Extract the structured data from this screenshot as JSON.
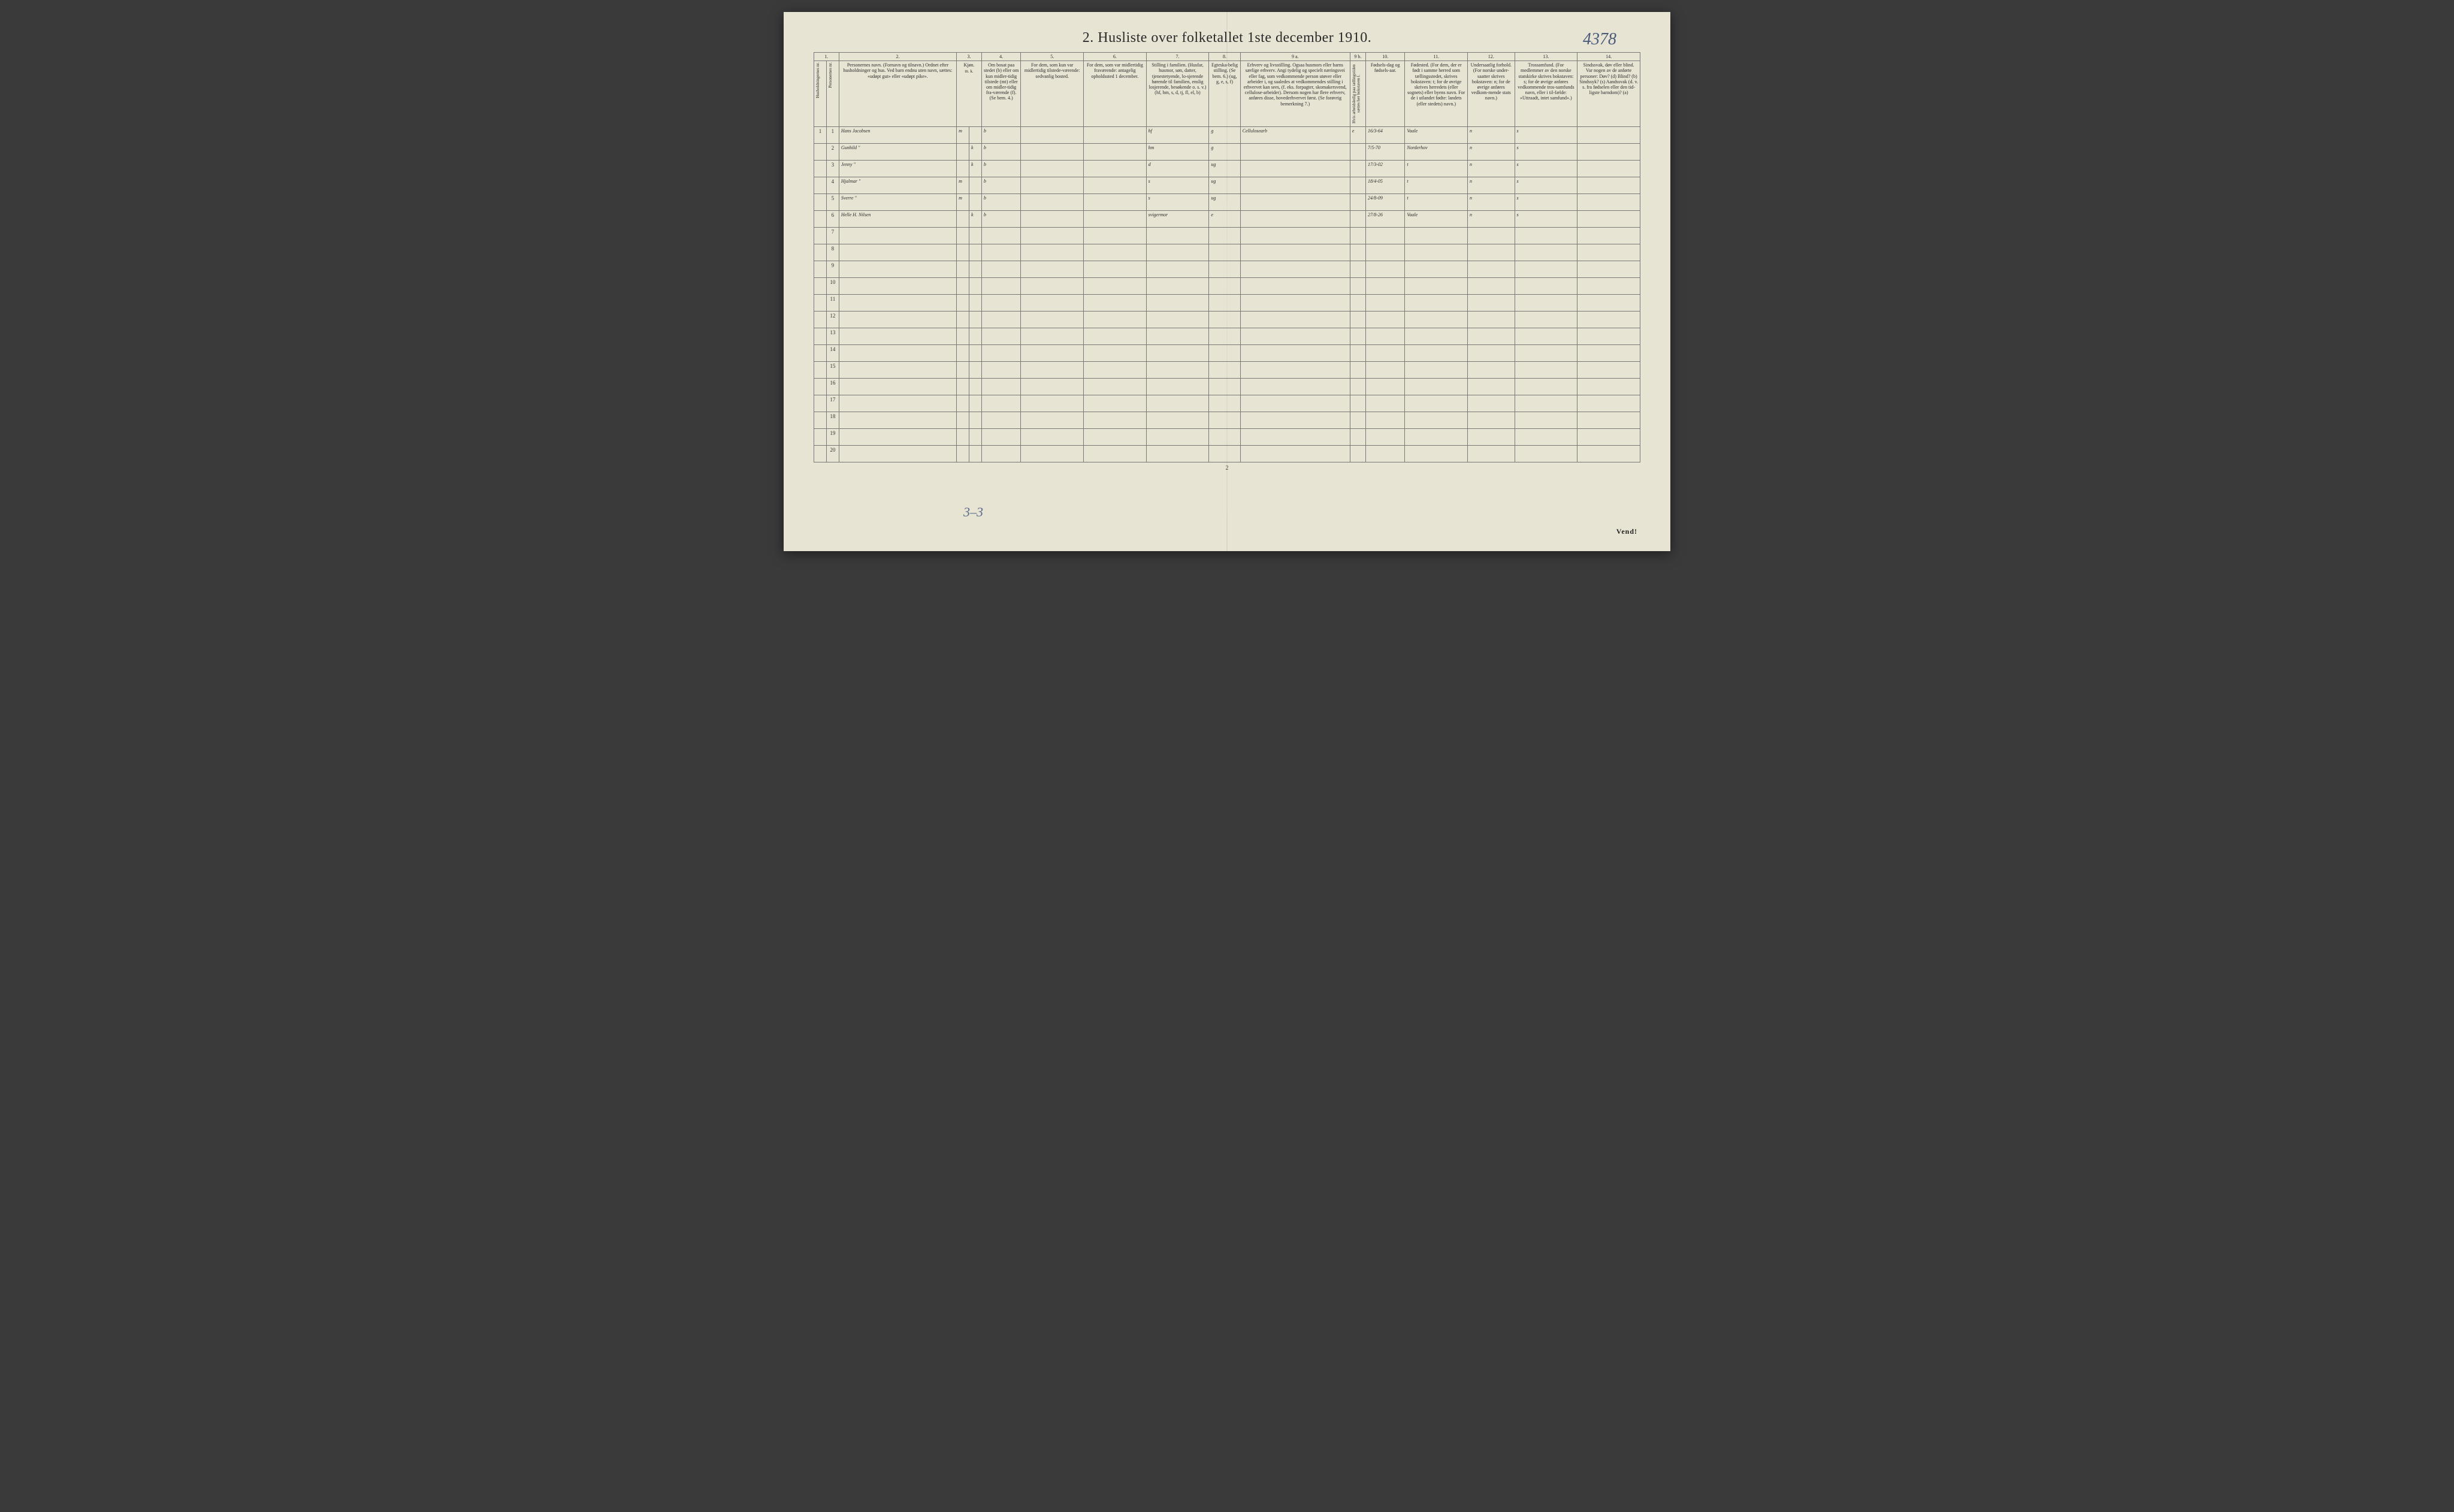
{
  "page": {
    "title": "2.  Husliste over folketallet 1ste december 1910.",
    "handwritten_id": "4378",
    "page_number": "2",
    "footer_handwritten": "3–3",
    "vend": "Vend!",
    "background_color": "#e8e4d4",
    "ink_color": "#2a2a2a",
    "handwriting_color": "#3a5a8a"
  },
  "columns": {
    "nums": [
      "1.",
      "2.",
      "3.",
      "4.",
      "5.",
      "6.",
      "7.",
      "8.",
      "9 a.",
      "9 b.",
      "10.",
      "11.",
      "12.",
      "13.",
      "14."
    ],
    "widths_pct": [
      2,
      2,
      15,
      2,
      2,
      5,
      8,
      8,
      8,
      4,
      14,
      2,
      5,
      8,
      6,
      8,
      8
    ],
    "c1a": "Husholdningernes nr.",
    "c1b": "Personernes nr.",
    "c2": "Personernes navn.\n(Fornavn og tilnavn.)\nOrdnet efter husholdninger og hus.\nVed barn endnu uten navn, sættes: «udøpt gut» eller «udøpt pike».",
    "c3_top": "Kjøn.",
    "c3a": "Mænd.",
    "c3b": "Kvinder.",
    "c3_sub": "m.  k.",
    "c4": "Om bosat paa stedet (b) eller om kun midler-tidig tilstede (mt) eller om midler-tidig fra-værende (f).\n(Se bem. 4.)",
    "c5": "For dem, som kun var midlertidig tilstede-værende:\nsedvanlig bosted.",
    "c6": "For dem, som var midlertidig fraværende:\nantagelig opholdssted 1 december.",
    "c7": "Stilling i familien.\n(Husfar, husmor, søn, datter, tjenestetyende, lo-sjerende hørende til familien, enslig losjerende, besøkende o. s. v.)\n(hf, hm, s, d, tj, fl, el, b)",
    "c8": "Egteska-belig stilling.\n(Se bem. 6.)\n(ug, g, e, s, f)",
    "c9a": "Erhverv og livsstilling.\nOgsaa husmors eller barns særlige erhverv.\nAngi tydelig og specielt næringsvei eller fag, som vedkommende person utøver eller arbeider i, og saaledes at vedkommendes stilling i erhvervet kan sees, (f. eks. forpagter, skomakersvend, cellulose-arbeider). Dersom nogen har flere erhverv, anføres disse, hovederhvervet først.\n(Se forøvrig bemerkning 7.)",
    "c9b": "Hvis arbeidsledig paa tællingstiden sættes her bokstaven l.",
    "c10": "Fødsels-dag og fødsels-aar.",
    "c11": "Fødested.\n(For dem, der er født i samme herred som tællingsstedet, skrives bokstaven: t; for de øvrige skrives herredets (eller sognets) eller byens navn.\nFor de i utlandet fødte: landets (eller stedets) navn.)",
    "c12": "Undersaatlig forhold.\n(For norske under-saatter skrives bokstaven: n; for de øvrige anføres vedkom-mende stats navn.)",
    "c13": "Trossamfund.\n(For medlemmer av den norske statskirke skrives bokstaven: s; for de øvrige anføres vedkommende tros-samfunds navn, eller i til-fælde: «Uttraadt, intet samfund».)",
    "c14": "Sindssvak, døv eller blind.\nVar nogen av de anførte personer:\nDøv?        (d)\nBlind?      (b)\nSindssyk? (s)\nAandssvak (d. v. s. fra fødselen eller den tid-ligste barndom)? (a)"
  },
  "rows": [
    {
      "hh": "1",
      "pn": "1",
      "name": "Hans Jacobsen",
      "sex_m": "m",
      "sex_k": "",
      "res": "b",
      "c5": "",
      "c6": "",
      "fam": "hf",
      "mar": "g",
      "occ": "Cellulosearb",
      "c9b": "e",
      "dob": "16/3-64",
      "birthplace": "Vaale",
      "nat": "n",
      "rel": "s",
      "c14": ""
    },
    {
      "hh": "",
      "pn": "2",
      "name": "Gunhild     \"",
      "sex_m": "",
      "sex_k": "k",
      "res": "b",
      "c5": "",
      "c6": "",
      "fam": "hm",
      "mar": "g",
      "occ": "",
      "c9b": "",
      "dob": "7/5-70",
      "birthplace": "Norderhov",
      "nat": "n",
      "rel": "s",
      "c14": ""
    },
    {
      "hh": "",
      "pn": "3",
      "name": "Jenny       \"",
      "sex_m": "",
      "sex_k": "k",
      "res": "b",
      "c5": "",
      "c6": "",
      "fam": "d",
      "mar": "ug",
      "occ": "",
      "c9b": "",
      "dob": "17/3-02",
      "birthplace": "t",
      "nat": "n",
      "rel": "s",
      "c14": ""
    },
    {
      "hh": "",
      "pn": "4",
      "name": "Hjalmar     \"",
      "sex_m": "m",
      "sex_k": "",
      "res": "b",
      "c5": "",
      "c6": "",
      "fam": "s",
      "mar": "ug",
      "occ": "",
      "c9b": "",
      "dob": "18/4-05",
      "birthplace": "t",
      "nat": "n",
      "rel": "s",
      "c14": ""
    },
    {
      "hh": "",
      "pn": "5",
      "name": "Sverre      \"",
      "sex_m": "m",
      "sex_k": "",
      "res": "b",
      "c5": "",
      "c6": "",
      "fam": "s",
      "mar": "ug",
      "occ": "",
      "c9b": "",
      "dob": "24/8-09",
      "birthplace": "t",
      "nat": "n",
      "rel": "s",
      "c14": ""
    },
    {
      "hh": "",
      "pn": "6",
      "name": "Helle H. Nilsen",
      "sex_m": "",
      "sex_k": "k",
      "res": "b",
      "c5": "",
      "c6": "",
      "fam": "svigermor",
      "mar": "e",
      "occ": "",
      "c9b": "",
      "dob": "27/8-26",
      "birthplace": "Vaale",
      "nat": "n",
      "rel": "s",
      "c14": ""
    }
  ],
  "empty_row_count": 14
}
